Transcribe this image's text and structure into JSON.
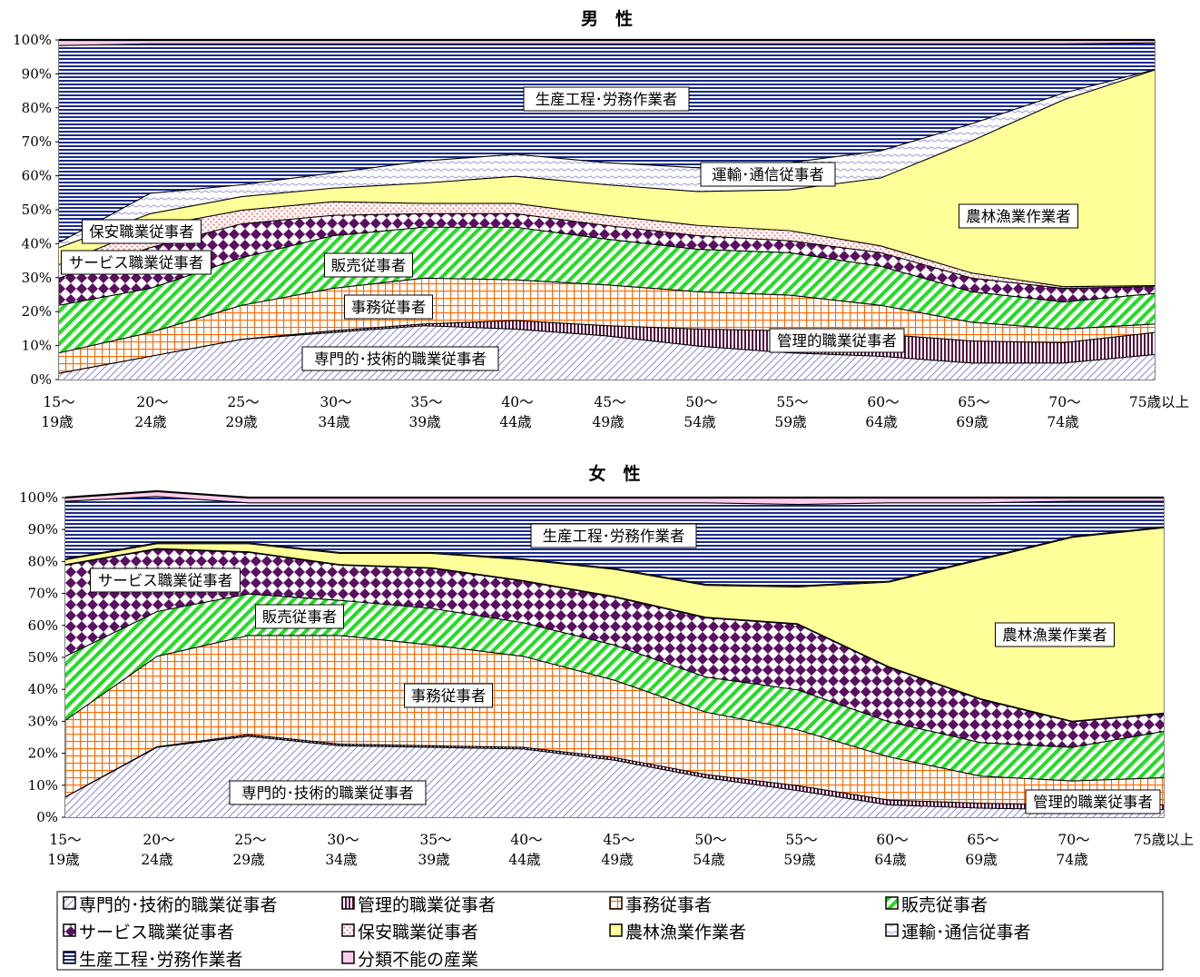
{
  "chart_data": [
    {
      "type": "area",
      "stacked": true,
      "percent": true,
      "title": "男　性",
      "ylim": [
        0,
        100
      ],
      "ytick_labels": [
        "0%",
        "10%",
        "20%",
        "30%",
        "40%",
        "50%",
        "60%",
        "70%",
        "80%",
        "90%",
        "100%"
      ],
      "categories": [
        [
          "15～",
          "19歳"
        ],
        [
          "20～",
          "24歳"
        ],
        [
          "25～",
          "29歳"
        ],
        [
          "30～",
          "34歳"
        ],
        [
          "35～",
          "39歳"
        ],
        [
          "40～",
          "44歳"
        ],
        [
          "45～",
          "49歳"
        ],
        [
          "50～",
          "54歳"
        ],
        [
          "55～",
          "59歳"
        ],
        [
          "60～",
          "64歳"
        ],
        [
          "65～",
          "69歳"
        ],
        [
          "70～",
          "74歳"
        ],
        [
          "75歳以上",
          ""
        ]
      ],
      "series": [
        {
          "name": "専門的･技術的職業従事者",
          "values": [
            2,
            7,
            12,
            14,
            16,
            15,
            13,
            10,
            8,
            7,
            5,
            5,
            7.5
          ]
        },
        {
          "name": "管理的職業従事者",
          "values": [
            0,
            0,
            0,
            0.5,
            0.5,
            2.5,
            3,
            5,
            6.5,
            6.5,
            6.5,
            6,
            6.5
          ]
        },
        {
          "name": "事務従事者",
          "values": [
            6,
            7,
            10,
            12.5,
            13.5,
            12,
            12,
            11,
            10.5,
            8.5,
            5.5,
            4,
            2.5
          ]
        },
        {
          "name": "販売従事者",
          "values": [
            14,
            13,
            14,
            15.5,
            15,
            15.5,
            13.5,
            12.5,
            12.5,
            11.5,
            9,
            8,
            9
          ]
        },
        {
          "name": "サービス職業従事者",
          "values": [
            8,
            12,
            10,
            6,
            4,
            4,
            4,
            4,
            3.5,
            4,
            4,
            4,
            2
          ]
        },
        {
          "name": "保安職業従事者",
          "values": [
            4,
            6,
            4,
            4,
            3,
            3,
            3,
            3,
            3,
            2,
            1.5,
            0.5,
            0.3
          ]
        },
        {
          "name": "農林漁業作業者",
          "values": [
            5,
            4,
            4,
            4,
            6,
            8,
            9,
            10,
            12,
            20,
            39,
            55,
            63.5
          ]
        },
        {
          "name": "運輸･通信従事者",
          "values": [
            1.5,
            6,
            3.5,
            4.5,
            6.5,
            6.5,
            6.5,
            7,
            8,
            8,
            5,
            2,
            0.1
          ]
        },
        {
          "name": "生産工程･労務作業者",
          "values": [
            58,
            44,
            41.5,
            38,
            34.5,
            32.5,
            35,
            36.5,
            35,
            31.5,
            23.5,
            14.5,
            7.9
          ]
        },
        {
          "name": "分類不能の産業",
          "values": [
            1.5,
            1,
            1,
            1,
            1,
            1,
            1,
            1,
            1,
            1,
            1,
            1,
            0.7
          ]
        }
      ],
      "annotations": [
        "生産工程･労務作業者",
        "運輸･通信従事者",
        "農林漁業作業者",
        "保安職業従事者",
        "サービス職業従事者",
        "販売従事者",
        "事務従事者",
        "管理的職業従事者",
        "専門的･技術的職業従事者"
      ]
    },
    {
      "type": "area",
      "stacked": true,
      "percent": true,
      "title": "女　性",
      "ylim": [
        0,
        100
      ],
      "ytick_labels": [
        "0%",
        "10%",
        "20%",
        "30%",
        "40%",
        "50%",
        "60%",
        "70%",
        "80%",
        "90%",
        "100%"
      ],
      "categories": [
        [
          "15～",
          "19歳"
        ],
        [
          "20～",
          "24歳"
        ],
        [
          "25～",
          "29歳"
        ],
        [
          "30～",
          "34歳"
        ],
        [
          "35～",
          "39歳"
        ],
        [
          "40～",
          "44歳"
        ],
        [
          "45～",
          "49歳"
        ],
        [
          "50～",
          "54歳"
        ],
        [
          "55～",
          "59歳"
        ],
        [
          "60～",
          "64歳"
        ],
        [
          "65～",
          "69歳"
        ],
        [
          "70～",
          "74歳"
        ],
        [
          "75歳以上",
          ""
        ]
      ],
      "series": [
        {
          "name": "専門的･技術的職業従事者",
          "values": [
            6.5,
            22,
            25.5,
            22.5,
            22,
            21.5,
            18,
            12.5,
            8.5,
            4,
            3,
            2.5,
            2.5
          ]
        },
        {
          "name": "管理的職業従事者",
          "values": [
            0,
            0.2,
            0.5,
            0.5,
            0.5,
            0.5,
            0.8,
            1,
            1.5,
            1.5,
            1.5,
            1.5,
            1.5
          ]
        },
        {
          "name": "事務従事者",
          "values": [
            24,
            28.3,
            31,
            34,
            31.5,
            28.5,
            24.2,
            19.5,
            17.5,
            13.5,
            8.5,
            7.5,
            8.5
          ]
        },
        {
          "name": "販売従事者",
          "values": [
            20,
            14,
            13,
            11,
            11.5,
            10.5,
            11,
            11,
            12.5,
            11,
            10.5,
            10.5,
            14.5
          ]
        },
        {
          "name": "サービス職業従事者",
          "values": [
            28.5,
            19.5,
            13,
            11,
            12.5,
            13,
            15,
            18.5,
            20.5,
            17,
            13.5,
            8,
            5.5
          ]
        },
        {
          "name": "保安職業従事者",
          "values": [
            0.2,
            0.2,
            0.2,
            0.2,
            0.2,
            0.2,
            0.2,
            0.2,
            0.2,
            0.2,
            0.2,
            0.2,
            0.2
          ]
        },
        {
          "name": "農林漁業作業者",
          "values": [
            1.5,
            1.5,
            2.5,
            3.5,
            4.5,
            6.5,
            8.5,
            10,
            11.5,
            26.5,
            43.5,
            57.5,
            58
          ]
        },
        {
          "name": "運輸･通信従事者",
          "values": [
            0.3,
            0.3,
            0.3,
            0.3,
            0.3,
            0.3,
            0.3,
            0.3,
            0.3,
            0.3,
            0.3,
            0.3,
            0.3
          ]
        },
        {
          "name": "生産工程･労務作業者",
          "values": [
            18,
            14.5,
            12.5,
            15.5,
            15.5,
            17.5,
            20.5,
            25.5,
            25.5,
            24.5,
            17.5,
            11,
            8
          ]
        },
        {
          "name": "分類不能の産業",
          "values": [
            1,
            1.5,
            1.5,
            1.5,
            1.5,
            1.5,
            1.5,
            1.5,
            2,
            1.5,
            1.5,
            1,
            1
          ]
        }
      ],
      "annotations": [
        "生産工程･労務作業者",
        "サービス職業従事者",
        "販売従事者",
        "事務従事者",
        "農林漁業作業者",
        "専門的･技術的職業従事者",
        "管理的職業従事者"
      ]
    }
  ],
  "series_styles": [
    {
      "pattern": "diag",
      "bg": "#ffffff",
      "fg": "#8888dd"
    },
    {
      "pattern": "vlines",
      "bg": "#ffffff",
      "fg": "#5a1040"
    },
    {
      "pattern": "grid",
      "bg": "#ffffff",
      "fg": "#ff6600"
    },
    {
      "pattern": "stripes",
      "bg": "#ffffff",
      "fg": "#22dd22"
    },
    {
      "pattern": "diamonds",
      "bg": "#ffffff",
      "fg": "#5a1060"
    },
    {
      "pattern": "dots",
      "bg": "#ffffff",
      "fg": "#ff8888"
    },
    {
      "pattern": "solid",
      "bg": "#ffff99",
      "fg": "#ffff99"
    },
    {
      "pattern": "wave",
      "bg": "#ffffff",
      "fg": "#9999dd"
    },
    {
      "pattern": "hlines",
      "bg": "#ffffff",
      "fg": "#1a2a8a"
    },
    {
      "pattern": "solid",
      "bg": "#ffccee",
      "fg": "#ff66cc"
    }
  ],
  "legend": {
    "items": [
      "専門的･技術的職業従事者",
      "管理的職業従事者",
      "事務従事者",
      "販売従事者",
      "サービス職業従事者",
      "保安職業従事者",
      "農林漁業作業者",
      "運輸･通信従事者",
      "生産工程･労務作業者",
      "分類不能の産業"
    ]
  }
}
